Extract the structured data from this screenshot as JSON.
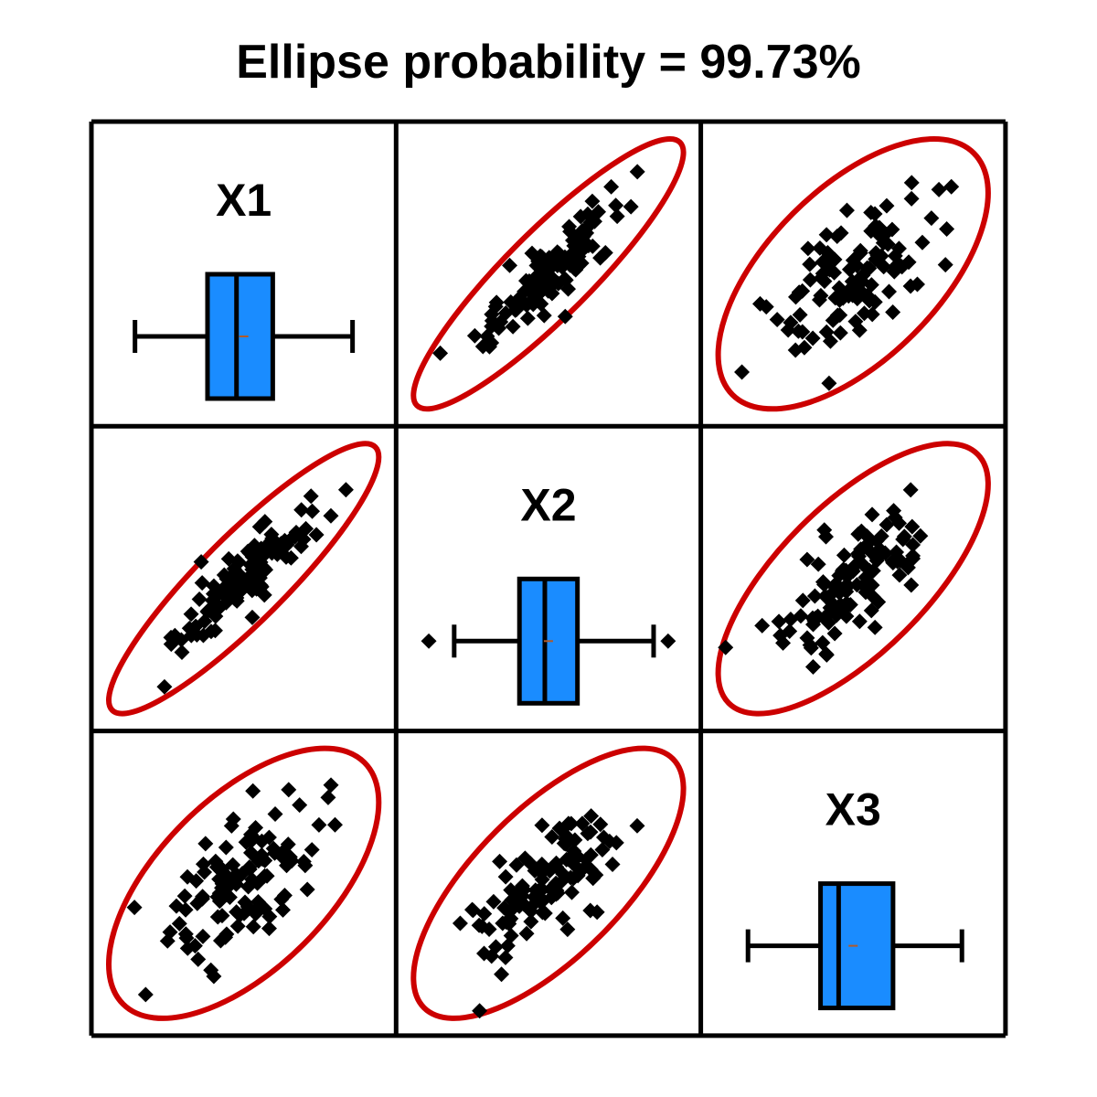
{
  "chart_data": {
    "type": "scatter-matrix",
    "title": "Ellipse probability = 99.73%",
    "variables": [
      "X1",
      "X2",
      "X3"
    ],
    "colors": {
      "ellipse": "#cc0000",
      "points": "#000000",
      "box_fill": "#1a8cff",
      "mean_marker": "#b05a2a",
      "frame": "#000000"
    },
    "boxplots": [
      {
        "variable": "X1",
        "whisker_low": -3.0,
        "q1": -1.0,
        "median": -0.2,
        "q3": 0.8,
        "whisker_high": 3.0,
        "mean": 0.0,
        "outliers": []
      },
      {
        "variable": "X2",
        "whisker_low": -2.6,
        "q1": -0.8,
        "median": -0.1,
        "q3": 0.8,
        "whisker_high": 2.9,
        "mean": 0.0,
        "outliers": [
          -3.3,
          3.3
        ]
      },
      {
        "variable": "X3",
        "whisker_low": -2.9,
        "q1": -0.9,
        "median": -0.4,
        "q3": 1.1,
        "whisker_high": 3.0,
        "mean": 0.0,
        "outliers": []
      }
    ],
    "ellipse_level": 0.9973,
    "correlations": {
      "X1_X2": 0.9,
      "X1_X3": 0.6,
      "X2_X3": 0.7
    }
  }
}
